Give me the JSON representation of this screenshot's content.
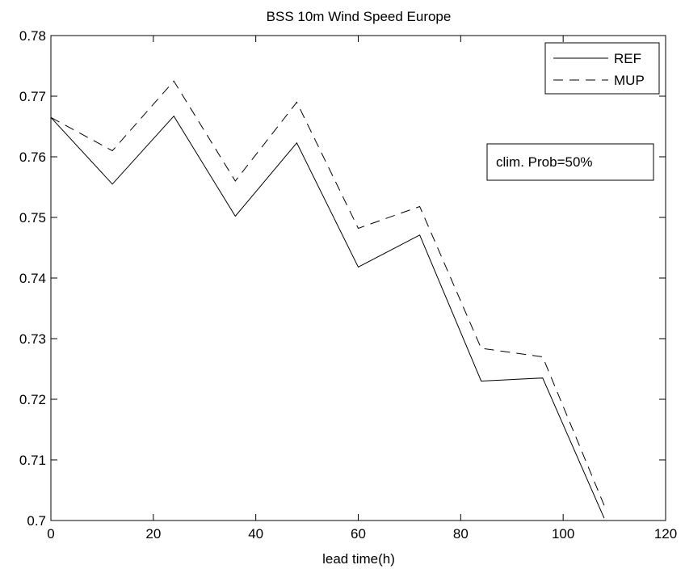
{
  "chart_data": {
    "type": "line",
    "title": "BSS 10m Wind Speed Europe",
    "xlabel": "lead time(h)",
    "ylabel": "",
    "xlim": [
      0,
      120
    ],
    "ylim": [
      0.7,
      0.78
    ],
    "xticks": [
      0,
      20,
      40,
      60,
      80,
      100,
      120
    ],
    "yticks": [
      0.7,
      0.71,
      0.72,
      0.73,
      0.74,
      0.75,
      0.76,
      0.77,
      0.78
    ],
    "xtick_labels": [
      "0",
      "20",
      "40",
      "60",
      "80",
      "100",
      "120"
    ],
    "ytick_labels": [
      "0.7",
      "0.71",
      "0.72",
      "0.73",
      "0.74",
      "0.75",
      "0.76",
      "0.77",
      "0.78"
    ],
    "grid": false,
    "legend_position": "top-right",
    "annotation": "clim. Prob=50%",
    "series": [
      {
        "name": "REF",
        "style": "solid",
        "x": [
          0,
          12,
          24,
          36,
          48,
          60,
          72,
          84,
          96,
          108
        ],
        "y": [
          0.7665,
          0.7555,
          0.7667,
          0.7502,
          0.7623,
          0.7418,
          0.7471,
          0.723,
          0.7235,
          0.7004
        ]
      },
      {
        "name": "MUP",
        "style": "dashed",
        "x": [
          0,
          12,
          24,
          36,
          48,
          60,
          72,
          84,
          96,
          108
        ],
        "y": [
          0.7665,
          0.761,
          0.7725,
          0.756,
          0.769,
          0.7482,
          0.7518,
          0.7284,
          0.727,
          0.7025
        ]
      }
    ]
  }
}
